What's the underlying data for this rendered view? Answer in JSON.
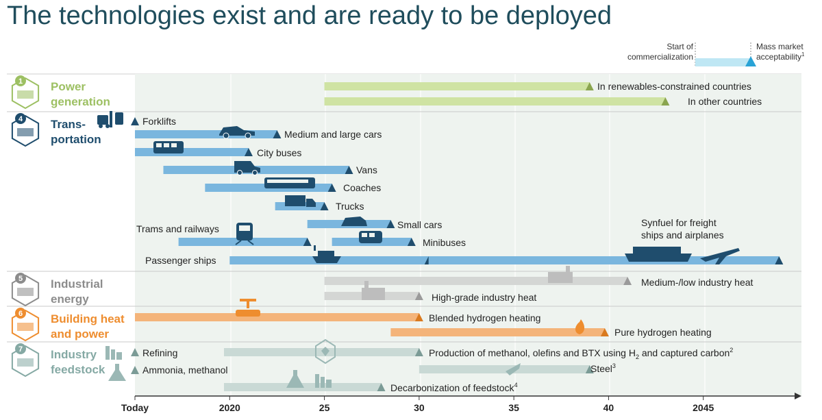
{
  "title": "The technologies exist and are ready to be deployed",
  "legend": {
    "start_label_1": "Start of",
    "start_label_2": "commercialization",
    "end_label_1": "Mass market",
    "end_label_2": "acceptability",
    "end_sup": "1"
  },
  "sections": [
    {
      "number": "1",
      "title_1": "Power",
      "title_2": "generation",
      "color": "#9dc063"
    },
    {
      "number": "4",
      "title_1": "Trans-",
      "title_2": "portation",
      "color": "#1f4d6d"
    },
    {
      "number": "5",
      "title_1": "Industrial",
      "title_2": "energy",
      "color": "#8c8c8c"
    },
    {
      "number": "6",
      "title_1": "Building heat",
      "title_2": "and power",
      "color": "#ee8d2f"
    },
    {
      "number": "7",
      "title_1": "Industry",
      "title_2": "feedstock",
      "color": "#85a9a4"
    }
  ],
  "chart_data": {
    "type": "gantt",
    "title": "The technologies exist and are ready to be deployed",
    "x_axis": {
      "ticks": [
        "Today",
        "2020",
        "25",
        "30",
        "35",
        "40",
        "2045"
      ],
      "range": [
        2015,
        2050
      ]
    },
    "bars": [
      {
        "section": 0,
        "label": "In renewables-constrained countries",
        "start": 2025,
        "end": 2039
      },
      {
        "section": 0,
        "label": "In other countries",
        "start": 2025,
        "end": 2043
      },
      {
        "section": 1,
        "label": "Forklifts",
        "start": null,
        "end": 2015
      },
      {
        "section": 1,
        "label": "Medium and large cars",
        "start": 2015,
        "end": 2022.5
      },
      {
        "section": 1,
        "label": "City buses",
        "start": 2015,
        "end": 2021
      },
      {
        "section": 1,
        "label": "Vans",
        "start": 2016.5,
        "end": 2026.3
      },
      {
        "section": 1,
        "label": "Coaches",
        "start": 2018.7,
        "end": 2025.4
      },
      {
        "section": 1,
        "label": "Trucks",
        "start": 2022.4,
        "end": 2025
      },
      {
        "section": 1,
        "label": "Small cars",
        "start": 2024.1,
        "end": 2028.5
      },
      {
        "section": 1,
        "label": "Trams and railways",
        "start": 2017.3,
        "end": 2024.1
      },
      {
        "section": 1,
        "label": "Minibuses",
        "start": 2025.4,
        "end": 2029.6
      },
      {
        "section": 1,
        "label": "Passenger ships",
        "start": 2020,
        "end": 2030.5
      },
      {
        "section": 1,
        "label": "Synfuel for freight ships and airplanes",
        "start": 2030.5,
        "end": 2049
      },
      {
        "section": 2,
        "label": "Medium-/low industry heat",
        "start": 2025,
        "end": 2041
      },
      {
        "section": 2,
        "label": "High-grade industry heat",
        "start": 2025,
        "end": 2030
      },
      {
        "section": 3,
        "label": "Blended hydrogen heating",
        "start": 2015,
        "end": 2030
      },
      {
        "section": 3,
        "label": "Pure hydrogen heating",
        "start": 2028.5,
        "end": 2039.8
      },
      {
        "section": 4,
        "label": "Refining",
        "start": null,
        "end": 2015
      },
      {
        "section": 4,
        "label": "Production of methanol, olefins and BTX using H2 and captured carbon",
        "start": 2019.7,
        "end": 2030
      },
      {
        "section": 4,
        "label": "Ammonia, methanol",
        "start": null,
        "end": 2015
      },
      {
        "section": 4,
        "label": "Steel",
        "start": 2030,
        "end": 2039
      },
      {
        "section": 4,
        "label": "Decarbonization of feedstock",
        "start": 2019.7,
        "end": 2028
      }
    ]
  },
  "labels": {
    "renewables": "In renewables-constrained countries",
    "other_countries": "In other countries",
    "forklifts": "Forklifts",
    "medium_cars": "Medium and large cars",
    "city_buses": "City buses",
    "vans": "Vans",
    "coaches": "Coaches",
    "trucks": "Trucks",
    "small_cars": "Small cars",
    "trams": "Trams and railways",
    "minibuses": "Minibuses",
    "passenger_ships": "Passenger ships",
    "synfuel_1": "Synfuel for freight",
    "synfuel_2": "ships and airplanes",
    "medium_heat": "Medium-/low industry heat",
    "high_heat": "High-grade industry heat",
    "blended": "Blended hydrogen heating",
    "pure": "Pure hydrogen heating",
    "refining": "Refining",
    "methanol_prod": "Production of methanol, olefins and BTX using H",
    "methanol_sub": "2",
    "methanol_end": " and captured carbon",
    "methanol_sup": "2",
    "ammonia": "Ammonia, methanol",
    "steel": "Steel",
    "steel_sup": "3",
    "decarb": "Decarbonization of feedstock",
    "decarb_sup": "4"
  }
}
